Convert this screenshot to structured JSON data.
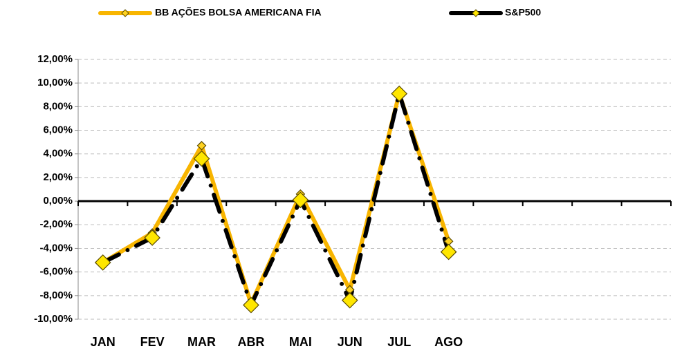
{
  "chart_data": {
    "type": "line",
    "categories": [
      "JAN",
      "FEV",
      "MAR",
      "ABR",
      "MAI",
      "JUN",
      "JUL",
      "AGO",
      null,
      null,
      null,
      null
    ],
    "series": [
      {
        "name": "BB AÇÕES BOLSA AMERICANA FIA",
        "color": "#f8b500",
        "values": [
          -5.2,
          -2.7,
          4.7,
          -8.7,
          0.6,
          -7.5,
          9.1,
          -3.4,
          null,
          null,
          null,
          null
        ]
      },
      {
        "name": "S&P500",
        "color": "#000000",
        "values": [
          -5.2,
          -3.1,
          3.6,
          -8.8,
          0.1,
          -8.4,
          9.1,
          -4.3,
          null,
          null,
          null,
          null
        ]
      }
    ],
    "ylim": [
      -10,
      12
    ],
    "yticks": [
      {
        "value": -10,
        "label": "-10,00%"
      },
      {
        "value": -8,
        "label": "-8,00%"
      },
      {
        "value": -6,
        "label": "-6,00%"
      },
      {
        "value": -4,
        "label": "-4,00%"
      },
      {
        "value": -2,
        "label": "-2,00%"
      },
      {
        "value": 0,
        "label": "0,00%"
      },
      {
        "value": 2,
        "label": "2,00%"
      },
      {
        "value": 4,
        "label": "4,00%"
      },
      {
        "value": 6,
        "label": "6,00%"
      },
      {
        "value": 8,
        "label": "8,00%"
      },
      {
        "value": 10,
        "label": "10,00%"
      },
      {
        "value": 12,
        "label": "12,00%"
      }
    ],
    "grid": true,
    "legend": "top"
  }
}
